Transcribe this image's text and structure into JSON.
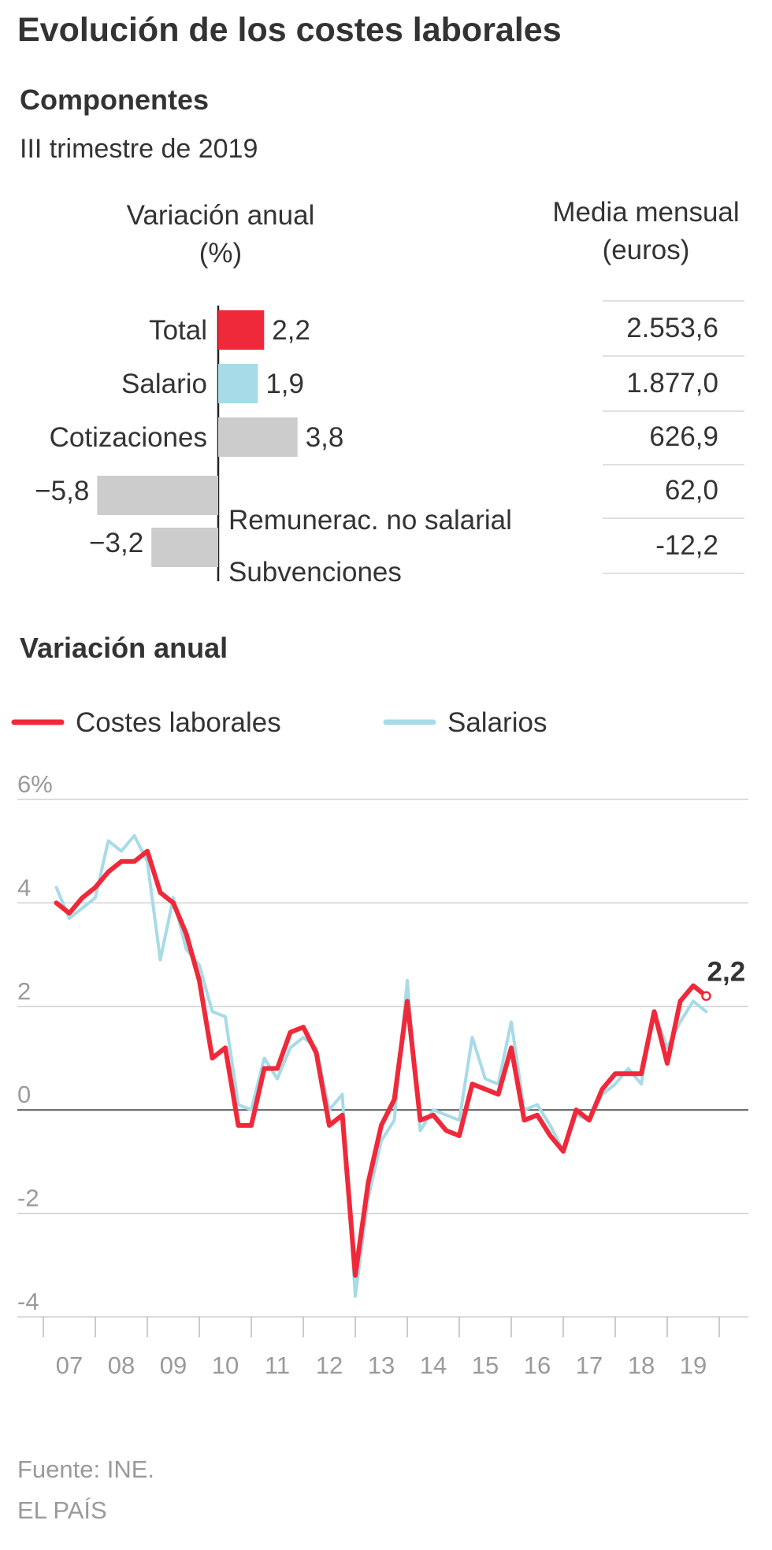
{
  "title": "Evolución de los costes laborales",
  "components": {
    "title": "Componentes",
    "subtitle": "III trimestre de 2019",
    "col_variation": [
      "Variación anual",
      "(%)"
    ],
    "col_media": [
      "Media mensual",
      "(euros)"
    ]
  },
  "variation_title": "Variación anual",
  "source": "Fuente: INE.",
  "brand": "EL PAÍS",
  "colors": {
    "costes": "#f0293a",
    "salarios": "#a6dbe7",
    "neutral": "#cccccc",
    "text": "#333333",
    "muted": "#9a9a9a",
    "grid": "#d0d0d0"
  },
  "chart_data": [
    {
      "type": "bar",
      "orientation": "horizontal",
      "xlabel": "Variación anual (%)",
      "categories": [
        "Total",
        "Salario",
        "Cotizaciones",
        "Remunerac. no salarial",
        "Subvenciones"
      ],
      "values": [
        2.2,
        1.9,
        3.8,
        -5.8,
        -3.2
      ],
      "value_labels": [
        "2,2",
        "1,9",
        "3,8",
        "−5,8",
        "−3,2"
      ],
      "bar_colors": [
        "#f0293a",
        "#a6dbe7",
        "#cccccc",
        "#cccccc",
        "#cccccc"
      ],
      "table": {
        "header": "Media mensual (euros)",
        "values": [
          "2.553,6",
          "1.877,0",
          "626,9",
          "62,0",
          "-12,2"
        ]
      }
    },
    {
      "type": "line",
      "x_start": 2007.25,
      "x_step": 0.25,
      "xlim": [
        2007,
        2020
      ],
      "ylim": [
        -4,
        6
      ],
      "yticks": [
        6,
        4,
        2,
        0,
        -2,
        -4
      ],
      "ytick_labels": [
        "6%",
        "4",
        "2",
        "0",
        "-2",
        "-4"
      ],
      "xticks": [
        2007,
        2008,
        2009,
        2010,
        2011,
        2012,
        2013,
        2014,
        2015,
        2016,
        2017,
        2018,
        2019
      ],
      "xtick_labels": [
        "07",
        "08",
        "09",
        "10",
        "11",
        "12",
        "13",
        "14",
        "15",
        "16",
        "17",
        "18",
        "19"
      ],
      "end_label": "2,2",
      "legend_position": "top-left",
      "series": [
        {
          "name": "Costes laborales",
          "color": "#f0293a",
          "values": [
            4.0,
            3.8,
            4.1,
            4.3,
            4.6,
            4.8,
            4.8,
            5.0,
            4.2,
            4.0,
            3.4,
            2.5,
            1.0,
            1.2,
            -0.3,
            -0.3,
            0.8,
            0.8,
            1.5,
            1.6,
            1.1,
            -0.3,
            -0.1,
            -3.2,
            -1.4,
            -0.3,
            0.2,
            2.1,
            -0.2,
            -0.1,
            -0.4,
            -0.5,
            0.5,
            0.4,
            0.3,
            1.2,
            -0.2,
            -0.1,
            -0.5,
            -0.8,
            0.0,
            -0.2,
            0.4,
            0.7,
            0.7,
            0.7,
            1.9,
            0.9,
            2.1,
            2.4,
            2.2
          ]
        },
        {
          "name": "Salarios",
          "color": "#a6dbe7",
          "values": [
            4.3,
            3.7,
            3.9,
            4.1,
            5.2,
            5.0,
            5.3,
            4.8,
            2.9,
            4.1,
            3.1,
            2.8,
            1.9,
            1.8,
            0.1,
            0.0,
            1.0,
            0.6,
            1.2,
            1.4,
            1.2,
            0.0,
            0.3,
            -3.6,
            -1.7,
            -0.6,
            -0.2,
            2.5,
            -0.4,
            0.0,
            -0.1,
            -0.2,
            1.4,
            0.6,
            0.5,
            1.7,
            0.0,
            0.1,
            -0.3,
            -0.8,
            -0.1,
            -0.2,
            0.3,
            0.5,
            0.8,
            0.5,
            1.9,
            1.2,
            1.7,
            2.1,
            1.9
          ]
        }
      ]
    }
  ]
}
